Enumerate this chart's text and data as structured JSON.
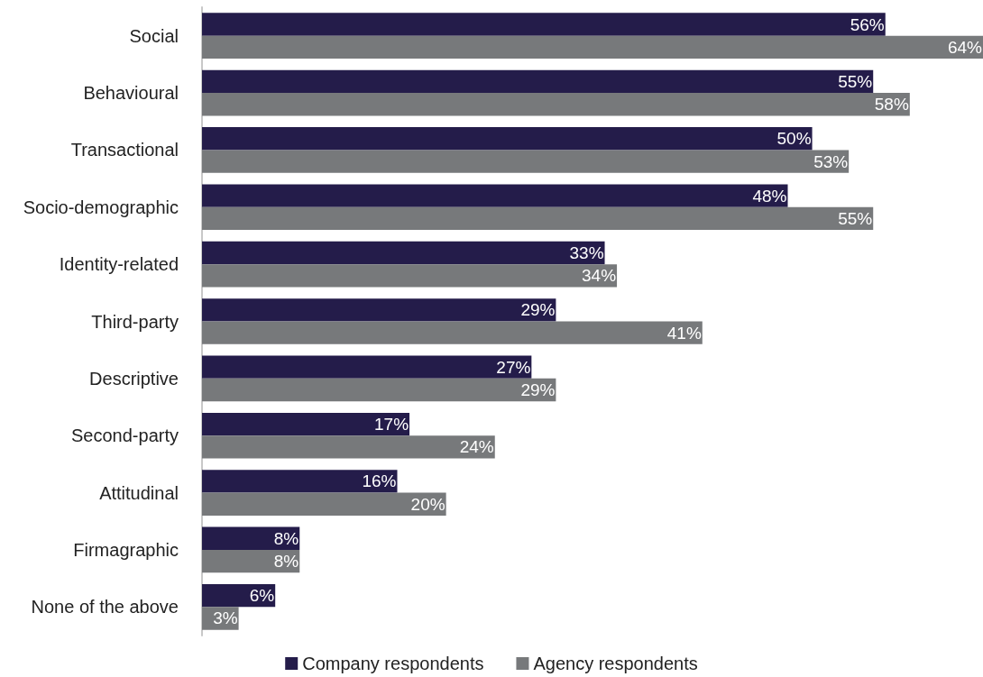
{
  "chart_data": {
    "type": "bar",
    "orientation": "horizontal",
    "categories": [
      "Social",
      "Behavioural",
      "Transactional",
      "Socio-demographic",
      "Identity-related",
      "Third-party",
      "Descriptive",
      "Second-party",
      "Attitudinal",
      "Firmagraphic",
      "None of the above"
    ],
    "series": [
      {
        "name": "Company respondents",
        "color": "#241c4a",
        "values": [
          56,
          55,
          50,
          48,
          33,
          29,
          27,
          17,
          16,
          8,
          6
        ],
        "value_labels": [
          "56%",
          "55%",
          "50%",
          "48%",
          "33%",
          "29%",
          "27%",
          "17%",
          "16%",
          "8%",
          "6%"
        ]
      },
      {
        "name": "Agency respondents",
        "color": "#77797b",
        "values": [
          64,
          58,
          53,
          55,
          34,
          41,
          29,
          24,
          20,
          8,
          3
        ],
        "value_labels": [
          "64%",
          "58%",
          "53%",
          "55%",
          "34%",
          "41%",
          "29%",
          "24%",
          "20%",
          "8%",
          "3%"
        ]
      }
    ],
    "xlim": [
      0,
      64
    ],
    "tick_labels": "y",
    "grid": false,
    "legend": "bottom"
  }
}
